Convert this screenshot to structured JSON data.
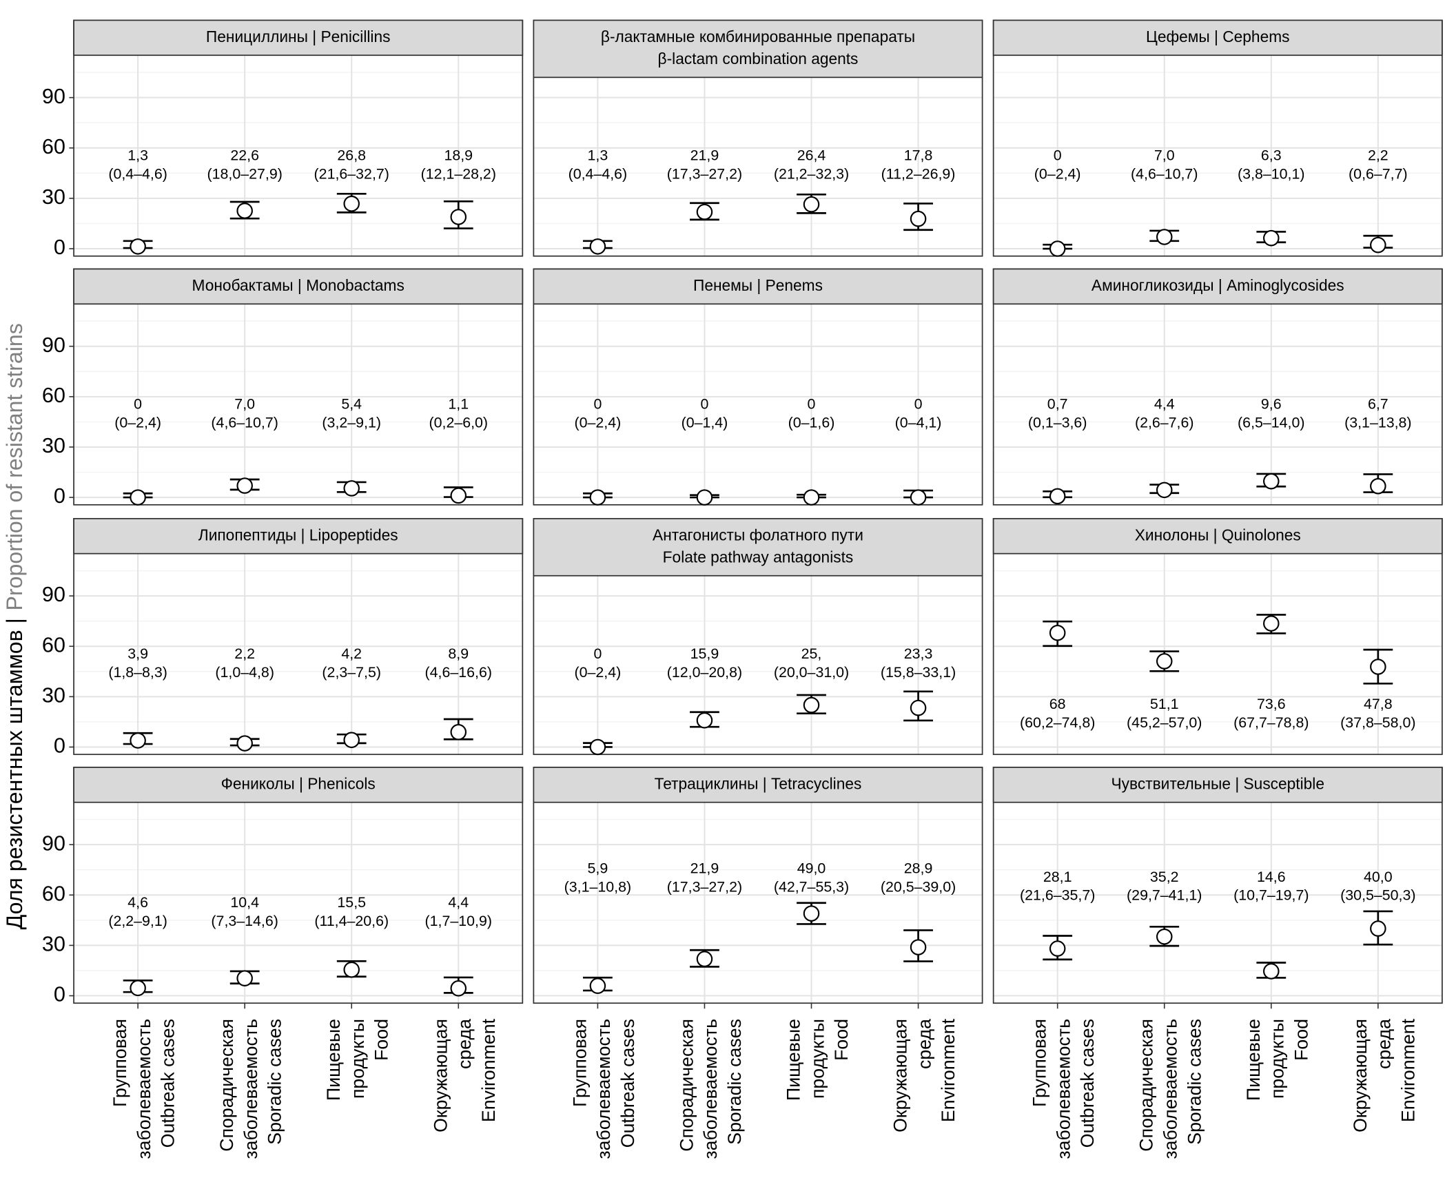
{
  "ylabel": "Доля резистентных штаммов |",
  "ylabel_en": "Proportion of resistant strains",
  "chart_data": [
    {
      "type": "pointrange",
      "title": [
        "Пенициллины | Penicillins"
      ],
      "values": [
        1.3,
        22.6,
        26.8,
        18.9
      ],
      "lower": [
        0.4,
        18.0,
        21.6,
        12.1
      ],
      "upper": [
        4.6,
        27.9,
        32.7,
        28.2
      ],
      "value_labels": [
        "1,3",
        "22,6",
        "26,8",
        "18,9"
      ],
      "ci_labels": [
        "(0,4–4,6)",
        "(18,0–27,9)",
        "(21,6–32,7)",
        "(12,1–28,2)"
      ],
      "label_position": "above",
      "ylim": [
        -4.4,
        115.2
      ],
      "yticks": [
        0,
        30,
        60,
        90
      ],
      "yminor": [
        15,
        45,
        75,
        105
      ]
    },
    {
      "type": "pointrange",
      "title": [
        "β-лактамные комбинированные препараты",
        "β-lactam combination agents"
      ],
      "values": [
        1.3,
        21.9,
        26.4,
        17.8
      ],
      "lower": [
        0.4,
        17.3,
        21.2,
        11.2
      ],
      "upper": [
        4.6,
        27.2,
        32.3,
        26.9
      ],
      "value_labels": [
        "1,3",
        "21,9",
        "26,4",
        "17,8"
      ],
      "ci_labels": [
        "(0,4–4,6)",
        "(17,3–27,2)",
        "(21,2–32,3)",
        "(11,2–26,9)"
      ],
      "label_position": "above",
      "ylim": [
        -4.4,
        115.2
      ],
      "yticks": [
        0,
        30,
        60,
        90
      ],
      "yminor": [
        15,
        45,
        75,
        105
      ]
    },
    {
      "type": "pointrange",
      "title": [
        "Цефемы | Cephems"
      ],
      "values": [
        0,
        7.0,
        6.3,
        2.2
      ],
      "lower": [
        0,
        4.6,
        3.8,
        0.6
      ],
      "upper": [
        2.4,
        10.7,
        10.1,
        7.7
      ],
      "value_labels": [
        "0",
        "7,0",
        "6,3",
        "2,2"
      ],
      "ci_labels": [
        "(0–2,4)",
        "(4,6–10,7)",
        "(3,8–10,1)",
        "(0,6–7,7)"
      ],
      "label_position": "above",
      "ylim": [
        -4.4,
        115.2
      ],
      "yticks": [
        0,
        30,
        60,
        90
      ],
      "yminor": [
        15,
        45,
        75,
        105
      ]
    },
    {
      "type": "pointrange",
      "title": [
        "Монобактамы | Monobactams"
      ],
      "values": [
        0,
        7.0,
        5.4,
        1.1
      ],
      "lower": [
        0,
        4.6,
        3.2,
        0.2
      ],
      "upper": [
        2.4,
        10.7,
        9.1,
        6.0
      ],
      "value_labels": [
        "0",
        "7,0",
        "5,4",
        "1,1"
      ],
      "ci_labels": [
        "(0–2,4)",
        "(4,6–10,7)",
        "(3,2–9,1)",
        "(0,2–6,0)"
      ],
      "label_position": "above",
      "ylim": [
        -4.4,
        115.2
      ],
      "yticks": [
        0,
        30,
        60,
        90
      ],
      "yminor": [
        15,
        45,
        75,
        105
      ]
    },
    {
      "type": "pointrange",
      "title": [
        "Пенемы | Penems"
      ],
      "values": [
        0,
        0,
        0,
        0
      ],
      "lower": [
        0,
        0,
        0,
        0
      ],
      "upper": [
        2.4,
        1.4,
        1.6,
        4.1
      ],
      "value_labels": [
        "0",
        "0",
        "0",
        "0"
      ],
      "ci_labels": [
        "(0–2,4)",
        "(0–1,4)",
        "(0–1,6)",
        "(0–4,1)"
      ],
      "label_position": "above",
      "ylim": [
        -4.4,
        115.2
      ],
      "yticks": [
        0,
        30,
        60,
        90
      ],
      "yminor": [
        15,
        45,
        75,
        105
      ]
    },
    {
      "type": "pointrange",
      "title": [
        "Аминогликозиды | Aminoglycosides"
      ],
      "values": [
        0.7,
        4.4,
        9.6,
        6.7
      ],
      "lower": [
        0.1,
        2.6,
        6.5,
        3.1
      ],
      "upper": [
        3.6,
        7.6,
        14.0,
        13.8
      ],
      "value_labels": [
        "0,7",
        "4,4",
        "9,6",
        "6,7"
      ],
      "ci_labels": [
        "(0,1–3,6)",
        "(2,6–7,6)",
        "(6,5–14,0)",
        "(3,1–13,8)"
      ],
      "label_position": "above",
      "ylim": [
        -4.4,
        115.2
      ],
      "yticks": [
        0,
        30,
        60,
        90
      ],
      "yminor": [
        15,
        45,
        75,
        105
      ]
    },
    {
      "type": "pointrange",
      "title": [
        "Липопептиды | Lipopeptides"
      ],
      "values": [
        3.9,
        2.2,
        4.2,
        8.9
      ],
      "lower": [
        1.8,
        1.0,
        2.3,
        4.6
      ],
      "upper": [
        8.3,
        4.8,
        7.5,
        16.6
      ],
      "value_labels": [
        "3,9",
        "2,2",
        "4,2",
        "8,9"
      ],
      "ci_labels": [
        "(1,8–8,3)",
        "(1,0–4,8)",
        "(2,3–7,5)",
        "(4,6–16,6)"
      ],
      "label_position": "above",
      "ylim": [
        -4.4,
        115.2
      ],
      "yticks": [
        0,
        30,
        60,
        90
      ],
      "yminor": [
        15,
        45,
        75,
        105
      ]
    },
    {
      "type": "pointrange",
      "title": [
        "Антагонисты фолатного пути",
        "Folate pathway antagonists"
      ],
      "values": [
        0,
        15.9,
        25,
        23.3
      ],
      "lower": [
        0,
        12.0,
        20.0,
        15.8
      ],
      "upper": [
        2.4,
        20.8,
        31.0,
        33.1
      ],
      "value_labels": [
        "0",
        "15,9",
        "25,",
        "23,3"
      ],
      "ci_labels": [
        "(0–2,4)",
        "(12,0–20,8)",
        "(20,0–31,0)",
        "(15,8–33,1)"
      ],
      "label_position": "above",
      "ylim": [
        -4.4,
        115.2
      ],
      "yticks": [
        0,
        30,
        60,
        90
      ],
      "yminor": [
        15,
        45,
        75,
        105
      ]
    },
    {
      "type": "pointrange",
      "title": [
        "Хинолоны | Quinolones"
      ],
      "values": [
        68,
        51.1,
        73.6,
        47.8
      ],
      "lower": [
        60.2,
        45.2,
        67.7,
        37.8
      ],
      "upper": [
        74.8,
        57.0,
        78.8,
        58.0
      ],
      "value_labels": [
        "68",
        "51,1",
        "73,6",
        "47,8"
      ],
      "ci_labels": [
        "(60,2–74,8)",
        "(45,2–57,0)",
        "(67,7–78,8)",
        "(37,8–58,0)"
      ],
      "label_position": "below",
      "ylim": [
        -4.4,
        115.2
      ],
      "yticks": [
        0,
        30,
        60,
        90
      ],
      "yminor": [
        15,
        45,
        75,
        105
      ]
    },
    {
      "type": "pointrange",
      "title": [
        "Фениколы | Phenicols"
      ],
      "values": [
        4.6,
        10.4,
        15.5,
        4.4
      ],
      "lower": [
        2.2,
        7.3,
        11.4,
        1.7
      ],
      "upper": [
        9.1,
        14.6,
        20.6,
        10.9
      ],
      "value_labels": [
        "4,6",
        "10,4",
        "15,5",
        "4,4"
      ],
      "ci_labels": [
        "(2,2–9,1)",
        "(7,3–14,6)",
        "(11,4–20,6)",
        "(1,7–10,9)"
      ],
      "label_position": "above",
      "ylim": [
        -4.4,
        115.2
      ],
      "yticks": [
        0,
        30,
        60,
        90
      ],
      "yminor": [
        15,
        45,
        75,
        105
      ],
      "categories": [
        [
          "Групповая",
          "заболеваемость"
        ],
        [
          "Спорадическая",
          "заболеваемость"
        ],
        [
          "Пищевые",
          "продукты"
        ],
        [
          "Окружающая",
          "среда"
        ]
      ],
      "categories_en": [
        "Outbreak cases",
        "Sporadic cases",
        "Food",
        "Environment"
      ]
    },
    {
      "type": "pointrange",
      "title": [
        "Тетрациклины | Tetracyclines"
      ],
      "values": [
        5.9,
        21.9,
        49.0,
        28.9
      ],
      "lower": [
        3.1,
        17.3,
        42.7,
        20.5
      ],
      "upper": [
        10.8,
        27.2,
        55.3,
        39.0
      ],
      "value_labels": [
        "5,9",
        "21,9",
        "49,0",
        "28,9"
      ],
      "ci_labels": [
        "(3,1–10,8)",
        "(17,3–27,2)",
        "(42,7–55,3)",
        "(20,5–39,0)"
      ],
      "label_position": "above",
      "ylim": [
        -4.4,
        115.2
      ],
      "yticks": [
        0,
        30,
        60,
        90
      ],
      "yminor": [
        15,
        45,
        75,
        105
      ],
      "categories": [
        [
          "Групповая",
          "заболеваемость"
        ],
        [
          "Спорадическая",
          "заболеваемость"
        ],
        [
          "Пищевые",
          "продукты"
        ],
        [
          "Окружающая",
          "среда"
        ]
      ],
      "categories_en": [
        "Outbreak cases",
        "Sporadic cases",
        "Food",
        "Environment"
      ]
    },
    {
      "type": "pointrange",
      "title": [
        "Чувствительные | Susceptible"
      ],
      "values": [
        28.1,
        35.2,
        14.6,
        40.0
      ],
      "lower": [
        21.6,
        29.7,
        10.7,
        30.5
      ],
      "upper": [
        35.7,
        41.1,
        19.7,
        50.3
      ],
      "value_labels": [
        "28,1",
        "35,2",
        "14,6",
        "40,0"
      ],
      "ci_labels": [
        "(21,6–35,7)",
        "(29,7–41,1)",
        "(10,7–19,7)",
        "(30,5–50,3)"
      ],
      "label_position": "above",
      "ylim": [
        -4.4,
        115.2
      ],
      "yticks": [
        0,
        30,
        60,
        90
      ],
      "yminor": [
        15,
        45,
        75,
        105
      ],
      "categories": [
        [
          "Групповая",
          "заболеваемость"
        ],
        [
          "Спорадическая",
          "заболеваемость"
        ],
        [
          "Пищевые",
          "продукты"
        ],
        [
          "Окружающая",
          "среда"
        ]
      ],
      "categories_en": [
        "Outbreak cases",
        "Sporadic cases",
        "Food",
        "Environment"
      ]
    }
  ]
}
